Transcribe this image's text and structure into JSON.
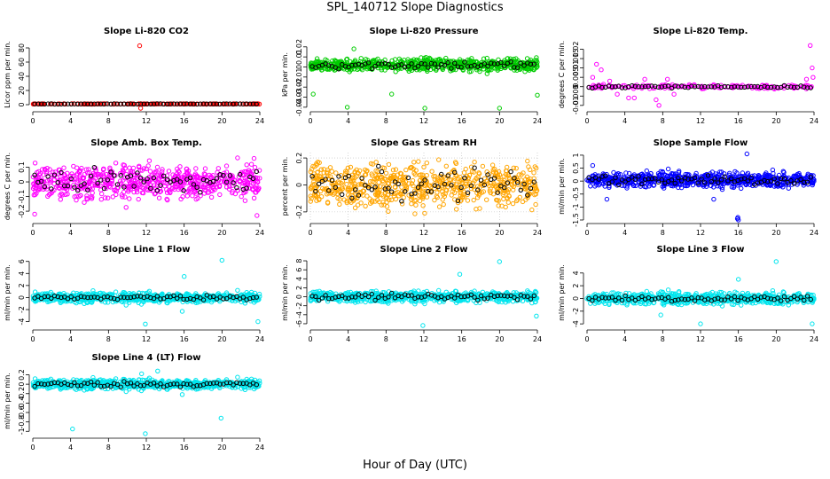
{
  "title": "SPL_140712  Slope Diagnostics",
  "xlabel": "Hour of Day (UTC)",
  "chart_data": [
    {
      "type": "scatter",
      "title": "Slope Li-820 CO2",
      "ylabel": "Licor ppm per min.",
      "xlim": [
        0,
        24
      ],
      "xticks": [
        0,
        4,
        8,
        12,
        16,
        20,
        24
      ],
      "ylim": [
        -5,
        90
      ],
      "yticks": [
        0,
        20,
        40,
        60,
        80
      ],
      "center": 1,
      "spread": 0.3,
      "black_spread": 0.25,
      "fill": false,
      "grid": false,
      "outliers": [
        [
          11.3,
          83
        ],
        [
          11.4,
          -5
        ]
      ],
      "series": [
        {
          "color": "#ff0000"
        },
        {
          "color": "#000000"
        }
      ]
    },
    {
      "type": "scatter",
      "title": "Slope Li-820 Pressure",
      "ylabel": "kPa per min.",
      "xlim": [
        0,
        24
      ],
      "xticks": [
        0,
        4,
        8,
        12,
        16,
        20,
        24
      ],
      "ylim": [
        -0.041,
        0.026
      ],
      "yticks": [
        -0.04,
        -0.03,
        -0.02,
        -0.01,
        0.0,
        0.01,
        0.02
      ],
      "center": 0.002,
      "spread": 0.006,
      "black_spread": 0.004,
      "fill": true,
      "grid": false,
      "outliers": [
        [
          0.3,
          -0.027
        ],
        [
          3.9,
          -0.04
        ],
        [
          8.6,
          -0.027
        ],
        [
          12.1,
          -0.041
        ],
        [
          20,
          -0.041
        ],
        [
          24,
          -0.028
        ],
        [
          4.6,
          0.018
        ]
      ],
      "series": [
        {
          "color": "#00cc00"
        },
        {
          "color": "#000000"
        }
      ]
    },
    {
      "type": "scatter",
      "title": "Slope Li-820 Temp.",
      "ylabel": "degrees C per min.",
      "xlim": [
        0,
        24
      ],
      "xticks": [
        0,
        4,
        8,
        12,
        16,
        20,
        24
      ],
      "ylim": [
        -0.0115,
        0.0245
      ],
      "yticks": [
        -0.01,
        -0.005,
        0.0,
        0.005,
        0.01,
        0.015,
        0.02
      ],
      "center": 0.0,
      "spread": 0.0012,
      "black_spread": 0.0006,
      "fill": false,
      "grid": false,
      "outliers": [
        [
          0.6,
          0.005
        ],
        [
          1.0,
          0.012
        ],
        [
          1.5,
          0.009
        ],
        [
          2.4,
          0.003
        ],
        [
          3.2,
          -0.004
        ],
        [
          4.4,
          -0.006
        ],
        [
          5.0,
          -0.006
        ],
        [
          6.1,
          0.004
        ],
        [
          7.3,
          -0.007
        ],
        [
          7.6,
          -0.01
        ],
        [
          8.5,
          0.004
        ],
        [
          9.2,
          -0.004
        ],
        [
          23.2,
          0.004
        ],
        [
          23.6,
          0.022
        ],
        [
          23.8,
          0.01
        ],
        [
          23.9,
          0.005
        ]
      ],
      "series": [
        {
          "color": "#ff00ff"
        },
        {
          "color": "#000000"
        }
      ]
    },
    {
      "type": "scatter",
      "title": "Slope Amb. Box Temp.",
      "ylabel": "degrees C per min.",
      "xlim": [
        0,
        24
      ],
      "xticks": [
        0,
        4,
        8,
        12,
        16,
        20,
        24
      ],
      "ylim": [
        -0.26,
        0.2
      ],
      "yticks": [
        -0.2,
        -0.1,
        0.0,
        0.1
      ],
      "center": 0.0,
      "spread": 0.11,
      "black_spread": 0.09,
      "fill": true,
      "grid": false,
      "outliers": [
        [
          0.2,
          -0.22
        ],
        [
          23.7,
          -0.23
        ]
      ],
      "series": [
        {
          "color": "#ff00ff"
        },
        {
          "color": "#000000"
        }
      ]
    },
    {
      "type": "scatter",
      "title": "Slope Gas Stream RH",
      "ylabel": "percent per min.",
      "xlim": [
        0,
        24
      ],
      "xticks": [
        0,
        4,
        8,
        12,
        16,
        20,
        24
      ],
      "ylim": [
        -0.26,
        0.24
      ],
      "yticks": [
        -0.2,
        0.0,
        0.2
      ],
      "center": 0.0,
      "spread": 0.16,
      "black_spread": 0.11,
      "fill": true,
      "grid": true,
      "outliers": [],
      "series": [
        {
          "color": "#ffa500"
        },
        {
          "color": "#000000"
        }
      ]
    },
    {
      "type": "scatter",
      "title": "Slope Sample Flow",
      "ylabel": "ml/min per min.",
      "xlim": [
        0,
        24
      ],
      "xticks": [
        0,
        4,
        8,
        12,
        16,
        20,
        24
      ],
      "ylim": [
        -1.5,
        1.1
      ],
      "yticks": [
        -1.5,
        -1.0,
        -0.5,
        0.0,
        0.5,
        1.0
      ],
      "center": 0.05,
      "spread": 0.28,
      "black_spread": 0.2,
      "fill": true,
      "grid": false,
      "outliers": [
        [
          0.6,
          0.6
        ],
        [
          2.1,
          -0.7
        ],
        [
          16.9,
          1.05
        ],
        [
          15.9,
          -1.45
        ],
        [
          15.95,
          -1.4
        ],
        [
          16.0,
          -1.5
        ],
        [
          13.4,
          -0.7
        ]
      ],
      "series": [
        {
          "color": "#0000ff"
        },
        {
          "color": "#000000"
        }
      ]
    },
    {
      "type": "scatter",
      "title": "Slope Line 1 Flow",
      "ylabel": "ml/min per min.",
      "xlim": [
        0,
        24
      ],
      "xticks": [
        0,
        4,
        8,
        12,
        16,
        20,
        24
      ],
      "ylim": [
        -4.8,
        6.4
      ],
      "yticks": [
        -4,
        -2,
        0,
        2,
        4,
        6
      ],
      "center": 0.0,
      "spread": 0.8,
      "black_spread": 0.4,
      "fill": true,
      "grid": false,
      "outliers": [
        [
          20,
          6.2
        ],
        [
          16,
          3.5
        ],
        [
          11.9,
          -4.4
        ],
        [
          23.8,
          -4
        ],
        [
          15.8,
          -2.3
        ]
      ],
      "series": [
        {
          "color": "#00e5ee"
        },
        {
          "color": "#000000"
        }
      ]
    },
    {
      "type": "scatter",
      "title": "Slope Line 2 Flow",
      "ylabel": "ml/min per min.",
      "xlim": [
        0,
        24
      ],
      "xticks": [
        0,
        4,
        8,
        12,
        16,
        20,
        24
      ],
      "ylim": [
        -6.6,
        8.4
      ],
      "yticks": [
        -6,
        -4,
        -2,
        0,
        2,
        4,
        6,
        8
      ],
      "center": 0.0,
      "spread": 1.2,
      "black_spread": 0.7,
      "fill": true,
      "grid": false,
      "outliers": [
        [
          20,
          7.8
        ],
        [
          15.8,
          5
        ],
        [
          11.9,
          -6.4
        ],
        [
          23.9,
          -4.3
        ]
      ],
      "series": [
        {
          "color": "#00e5ee"
        },
        {
          "color": "#000000"
        }
      ]
    },
    {
      "type": "scatter",
      "title": "Slope Line 3 Flow",
      "ylabel": "ml/min per min.",
      "xlim": [
        0,
        24
      ],
      "xticks": [
        0,
        4,
        8,
        12,
        16,
        20,
        24
      ],
      "ylim": [
        -4.4,
        6.2
      ],
      "yticks": [
        -4,
        -2,
        0,
        2,
        4
      ],
      "center": 0.0,
      "spread": 0.9,
      "black_spread": 0.5,
      "fill": true,
      "grid": false,
      "outliers": [
        [
          20,
          5.8
        ],
        [
          16,
          3
        ],
        [
          12,
          -4
        ],
        [
          23.8,
          -4
        ],
        [
          7.8,
          -2.6
        ]
      ],
      "series": [
        {
          "color": "#00e5ee"
        },
        {
          "color": "#000000"
        }
      ]
    },
    {
      "type": "scatter",
      "title": "Slope Line 4 (LT) Flow",
      "ylabel": "ml/min per min.",
      "xlim": [
        0,
        24
      ],
      "xticks": [
        0,
        4,
        8,
        12,
        16,
        20,
        24
      ],
      "ylim": [
        -1.07,
        0.36
      ],
      "yticks": [
        -1.0,
        -0.8,
        -0.6,
        -0.4,
        -0.2,
        0.0,
        0.2
      ],
      "center": 0.0,
      "spread": 0.1,
      "black_spread": 0.06,
      "fill": true,
      "grid": false,
      "outliers": [
        [
          4.2,
          -0.95
        ],
        [
          11.9,
          -1.05
        ],
        [
          19.9,
          -0.72
        ],
        [
          15.8,
          -0.22
        ],
        [
          13.2,
          0.28
        ],
        [
          11.5,
          0.22
        ]
      ],
      "series": [
        {
          "color": "#00e5ee"
        },
        {
          "color": "#000000"
        }
      ]
    }
  ]
}
